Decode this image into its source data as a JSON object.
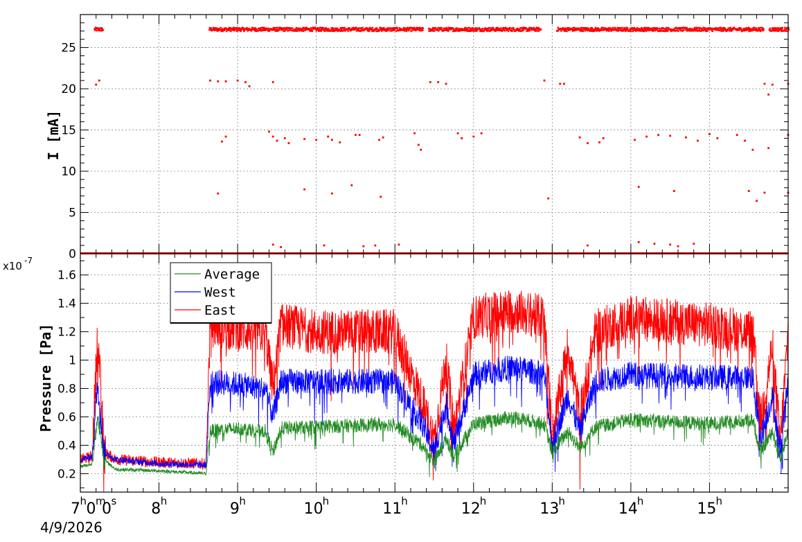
{
  "chart_data": [
    {
      "type": "scatter",
      "ylabel": "I [mA]",
      "ylim": [
        0,
        29
      ],
      "yticks": [
        "0",
        "5",
        "10",
        "15",
        "20",
        "25"
      ],
      "xlim_hours": [
        7.0,
        16.0
      ],
      "grid": true,
      "series": [
        {
          "color": "#ff0000",
          "beam_on_segments": [
            [
              7.17,
              7.28
            ],
            [
              8.63,
              11.35
            ],
            [
              11.42,
              12.85
            ],
            [
              13.05,
              15.68
            ],
            [
              15.75,
              16.0
            ]
          ],
          "beam_level": 27.2,
          "scattered_points": [
            {
              "x": 7.2,
              "y": 20.5
            },
            {
              "x": 7.24,
              "y": 21.0
            },
            {
              "x": 8.65,
              "y": 21.0
            },
            {
              "x": 8.75,
              "y": 20.9
            },
            {
              "x": 8.85,
              "y": 20.9
            },
            {
              "x": 9.0,
              "y": 21.0
            },
            {
              "x": 9.1,
              "y": 20.8
            },
            {
              "x": 9.15,
              "y": 20.3
            },
            {
              "x": 9.45,
              "y": 20.8
            },
            {
              "x": 11.45,
              "y": 20.8
            },
            {
              "x": 11.55,
              "y": 20.8
            },
            {
              "x": 11.65,
              "y": 20.6
            },
            {
              "x": 12.9,
              "y": 21.0
            },
            {
              "x": 13.1,
              "y": 20.6
            },
            {
              "x": 13.15,
              "y": 20.6
            },
            {
              "x": 15.7,
              "y": 20.6
            },
            {
              "x": 15.75,
              "y": 19.3
            },
            {
              "x": 15.8,
              "y": 20.5
            },
            {
              "x": 16.0,
              "y": 20.6
            },
            {
              "x": 8.8,
              "y": 13.6
            },
            {
              "x": 8.85,
              "y": 14.2
            },
            {
              "x": 9.4,
              "y": 14.8
            },
            {
              "x": 9.45,
              "y": 14.2
            },
            {
              "x": 9.5,
              "y": 13.7
            },
            {
              "x": 9.6,
              "y": 14.0
            },
            {
              "x": 9.65,
              "y": 13.4
            },
            {
              "x": 9.85,
              "y": 13.9
            },
            {
              "x": 10.0,
              "y": 13.8
            },
            {
              "x": 10.15,
              "y": 14.2
            },
            {
              "x": 10.2,
              "y": 13.8
            },
            {
              "x": 10.3,
              "y": 13.5
            },
            {
              "x": 10.5,
              "y": 14.4
            },
            {
              "x": 10.55,
              "y": 14.4
            },
            {
              "x": 10.8,
              "y": 13.8
            },
            {
              "x": 10.85,
              "y": 14.1
            },
            {
              "x": 11.25,
              "y": 14.6
            },
            {
              "x": 11.3,
              "y": 13.2
            },
            {
              "x": 11.33,
              "y": 12.6
            },
            {
              "x": 11.8,
              "y": 14.6
            },
            {
              "x": 11.85,
              "y": 14.0
            },
            {
              "x": 12.0,
              "y": 14.2
            },
            {
              "x": 12.1,
              "y": 14.6
            },
            {
              "x": 13.35,
              "y": 14.1
            },
            {
              "x": 13.45,
              "y": 13.4
            },
            {
              "x": 13.6,
              "y": 13.5
            },
            {
              "x": 13.65,
              "y": 14.0
            },
            {
              "x": 14.05,
              "y": 13.8
            },
            {
              "x": 14.2,
              "y": 14.2
            },
            {
              "x": 14.35,
              "y": 14.4
            },
            {
              "x": 14.5,
              "y": 14.3
            },
            {
              "x": 14.7,
              "y": 14.1
            },
            {
              "x": 14.85,
              "y": 13.7
            },
            {
              "x": 15.0,
              "y": 14.5
            },
            {
              "x": 15.1,
              "y": 14.0
            },
            {
              "x": 15.35,
              "y": 14.4
            },
            {
              "x": 15.45,
              "y": 13.7
            },
            {
              "x": 15.55,
              "y": 12.6
            },
            {
              "x": 15.75,
              "y": 12.8
            },
            {
              "x": 16.0,
              "y": 14.4
            },
            {
              "x": 8.75,
              "y": 7.3
            },
            {
              "x": 9.85,
              "y": 7.8
            },
            {
              "x": 10.2,
              "y": 7.3
            },
            {
              "x": 10.45,
              "y": 8.3
            },
            {
              "x": 10.82,
              "y": 6.9
            },
            {
              "x": 12.95,
              "y": 6.7
            },
            {
              "x": 14.1,
              "y": 8.1
            },
            {
              "x": 14.55,
              "y": 7.6
            },
            {
              "x": 15.5,
              "y": 7.6
            },
            {
              "x": 15.6,
              "y": 6.4
            },
            {
              "x": 15.7,
              "y": 7.4
            },
            {
              "x": 16.0,
              "y": 7.4
            },
            {
              "x": 9.45,
              "y": 1.1
            },
            {
              "x": 9.55,
              "y": 0.8
            },
            {
              "x": 10.1,
              "y": 1.0
            },
            {
              "x": 10.6,
              "y": 0.9
            },
            {
              "x": 10.75,
              "y": 1.0
            },
            {
              "x": 11.05,
              "y": 1.1
            },
            {
              "x": 13.45,
              "y": 1.0
            },
            {
              "x": 14.1,
              "y": 1.4
            },
            {
              "x": 14.3,
              "y": 1.2
            },
            {
              "x": 14.5,
              "y": 1.1
            },
            {
              "x": 14.6,
              "y": 0.9
            },
            {
              "x": 14.8,
              "y": 1.2
            }
          ]
        }
      ]
    },
    {
      "type": "line",
      "ylabel": "Pressure [Pa]",
      "yscale_label": "x10",
      "yscale_exponent": "-7",
      "ylim": [
        0.07,
        1.75
      ],
      "yticks": [
        "0.2",
        "0.4",
        "0.6",
        "0.8",
        "1",
        "1.2",
        "1.4",
        "1.6"
      ],
      "xlim_hours": [
        7.0,
        16.0
      ],
      "grid": true,
      "legend_placement": "top-left",
      "series": [
        {
          "name": "Average",
          "color": "#228b22",
          "keypoints": [
            [
              7.0,
              0.25
            ],
            [
              7.15,
              0.27
            ],
            [
              7.22,
              0.6
            ],
            [
              7.3,
              0.3
            ],
            [
              7.45,
              0.23
            ],
            [
              8.0,
              0.22
            ],
            [
              8.6,
              0.2
            ],
            [
              8.65,
              0.5
            ],
            [
              9.0,
              0.52
            ],
            [
              9.35,
              0.5
            ],
            [
              9.45,
              0.35
            ],
            [
              9.55,
              0.52
            ],
            [
              10.0,
              0.53
            ],
            [
              11.0,
              0.55
            ],
            [
              11.35,
              0.4
            ],
            [
              11.5,
              0.28
            ],
            [
              11.65,
              0.45
            ],
            [
              11.75,
              0.32
            ],
            [
              12.0,
              0.55
            ],
            [
              12.5,
              0.6
            ],
            [
              12.9,
              0.55
            ],
            [
              13.0,
              0.35
            ],
            [
              13.2,
              0.5
            ],
            [
              13.35,
              0.38
            ],
            [
              13.55,
              0.53
            ],
            [
              14.0,
              0.58
            ],
            [
              15.0,
              0.55
            ],
            [
              15.55,
              0.58
            ],
            [
              15.65,
              0.35
            ],
            [
              15.8,
              0.5
            ],
            [
              15.9,
              0.3
            ],
            [
              16.0,
              0.5
            ]
          ],
          "noise": 0.05
        },
        {
          "name": "West",
          "color": "#0000ff",
          "keypoints": [
            [
              7.0,
              0.3
            ],
            [
              7.15,
              0.32
            ],
            [
              7.22,
              0.85
            ],
            [
              7.3,
              0.35
            ],
            [
              7.45,
              0.3
            ],
            [
              8.0,
              0.27
            ],
            [
              8.6,
              0.26
            ],
            [
              8.65,
              0.85
            ],
            [
              9.0,
              0.83
            ],
            [
              9.35,
              0.8
            ],
            [
              9.45,
              0.6
            ],
            [
              9.55,
              0.85
            ],
            [
              10.0,
              0.85
            ],
            [
              11.0,
              0.85
            ],
            [
              11.35,
              0.55
            ],
            [
              11.5,
              0.35
            ],
            [
              11.65,
              0.7
            ],
            [
              11.75,
              0.4
            ],
            [
              12.0,
              0.9
            ],
            [
              12.5,
              0.95
            ],
            [
              12.9,
              0.9
            ],
            [
              13.0,
              0.4
            ],
            [
              13.2,
              0.75
            ],
            [
              13.35,
              0.5
            ],
            [
              13.55,
              0.85
            ],
            [
              14.0,
              0.9
            ],
            [
              15.0,
              0.88
            ],
            [
              15.55,
              0.88
            ],
            [
              15.65,
              0.45
            ],
            [
              15.8,
              0.75
            ],
            [
              15.9,
              0.35
            ],
            [
              16.0,
              0.85
            ]
          ],
          "noise": 0.09
        },
        {
          "name": "East",
          "color": "#ff0000",
          "keypoints": [
            [
              7.0,
              0.3
            ],
            [
              7.15,
              0.32
            ],
            [
              7.22,
              1.2
            ],
            [
              7.3,
              0.35
            ],
            [
              7.45,
              0.3
            ],
            [
              8.0,
              0.28
            ],
            [
              8.6,
              0.27
            ],
            [
              8.65,
              1.25
            ],
            [
              9.0,
              1.22
            ],
            [
              9.35,
              1.2
            ],
            [
              9.45,
              0.8
            ],
            [
              9.55,
              1.25
            ],
            [
              10.0,
              1.2
            ],
            [
              11.0,
              1.2
            ],
            [
              11.35,
              0.7
            ],
            [
              11.5,
              0.42
            ],
            [
              11.65,
              1.0
            ],
            [
              11.75,
              0.5
            ],
            [
              12.0,
              1.3
            ],
            [
              12.5,
              1.35
            ],
            [
              12.9,
              1.3
            ],
            [
              13.0,
              0.45
            ],
            [
              13.2,
              1.1
            ],
            [
              13.35,
              0.6
            ],
            [
              13.55,
              1.2
            ],
            [
              14.0,
              1.3
            ],
            [
              15.0,
              1.25
            ],
            [
              15.55,
              1.2
            ],
            [
              15.65,
              0.55
            ],
            [
              15.8,
              1.1
            ],
            [
              15.9,
              0.4
            ],
            [
              16.0,
              1.2
            ]
          ],
          "noise": 0.16
        }
      ]
    }
  ],
  "xaxis": {
    "ticks": [
      {
        "hour": 7,
        "main": "7",
        "sup": "h",
        "extra": [
          {
            "main": "0",
            "sup": "m"
          },
          {
            "main": "0",
            "sup": "s"
          }
        ]
      },
      {
        "hour": 8,
        "main": "8",
        "sup": "h"
      },
      {
        "hour": 9,
        "main": "9",
        "sup": "h"
      },
      {
        "hour": 10,
        "main": "10",
        "sup": "h"
      },
      {
        "hour": 11,
        "main": "11",
        "sup": "h"
      },
      {
        "hour": 12,
        "main": "12",
        "sup": "h"
      },
      {
        "hour": 13,
        "main": "13",
        "sup": "h"
      },
      {
        "hour": 14,
        "main": "14",
        "sup": "h"
      },
      {
        "hour": 15,
        "main": "15",
        "sup": "h"
      }
    ],
    "date": "4/9/2026"
  }
}
